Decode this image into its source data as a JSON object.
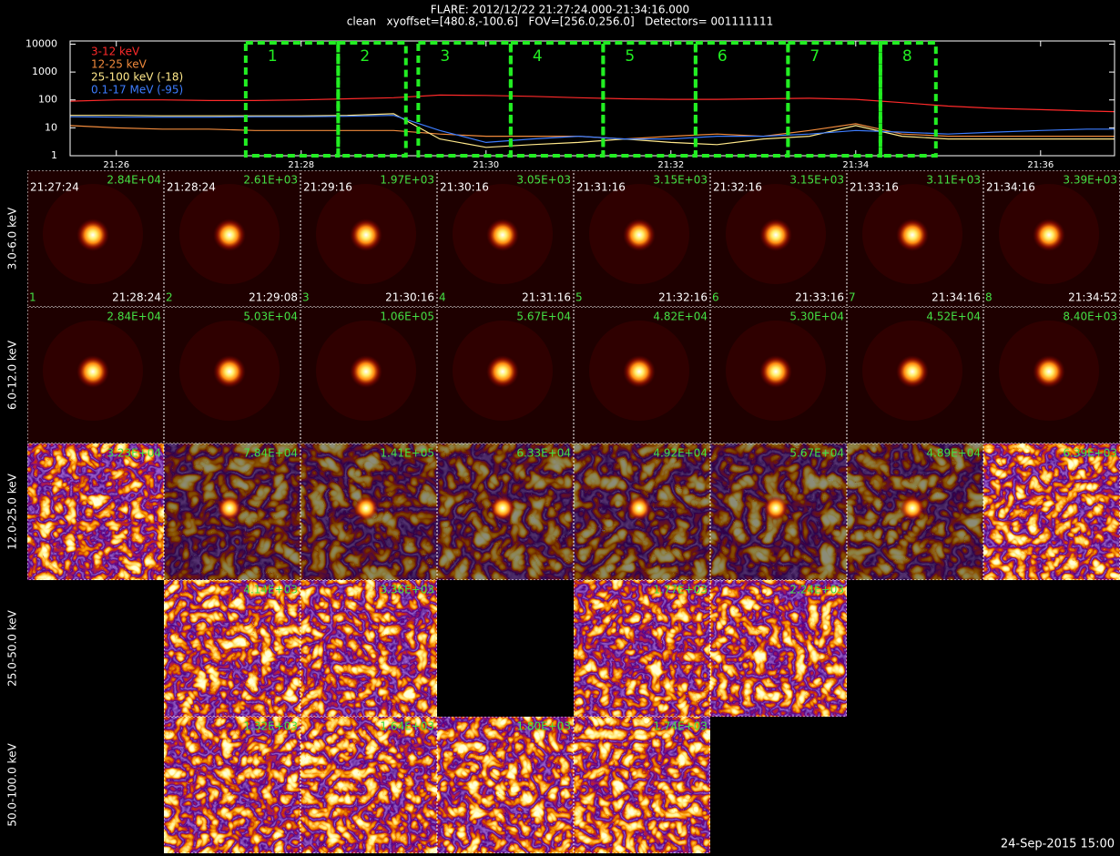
{
  "header": {
    "title": "FLARE: 2012/12/22 21:27:24.000-21:34:16.000",
    "subtitle": "clean   xyoffset=[480.8,-100.6]   FOV=[256.0,256.0]   Detectors= 001111111"
  },
  "chart_data": {
    "type": "line",
    "x": [
      25.5,
      26,
      26.5,
      27,
      27.5,
      28,
      28.5,
      29,
      29.5,
      30,
      30.5,
      31,
      31.5,
      32,
      32.5,
      33,
      33.5,
      34,
      34.5,
      35,
      35.5,
      36,
      36.5,
      36.8
    ],
    "xlim": [
      25.5,
      36.8
    ],
    "xticks": [
      {
        "value": 26,
        "label": "21:26"
      },
      {
        "value": 28,
        "label": "21:28"
      },
      {
        "value": 30,
        "label": "21:30"
      },
      {
        "value": 32,
        "label": "21:32"
      },
      {
        "value": 34,
        "label": "21:34"
      },
      {
        "value": 36,
        "label": "21:36"
      }
    ],
    "ylim": [
      1,
      13000
    ],
    "yticks": [
      1,
      10,
      100,
      1000,
      10000
    ],
    "log_y": true,
    "series": [
      {
        "name": "3-12 keV",
        "color": "#ff2a2a",
        "values": [
          90,
          100,
          100,
          95,
          95,
          100,
          110,
          120,
          150,
          145,
          135,
          120,
          110,
          105,
          105,
          110,
          115,
          105,
          80,
          60,
          50,
          45,
          40,
          38
        ]
      },
      {
        "name": "12-25 keV",
        "color": "#f08a3c",
        "values": [
          12,
          10,
          9,
          9,
          8,
          8,
          8,
          8,
          6,
          5,
          5,
          5,
          4,
          5,
          6,
          5,
          8,
          14,
          6,
          5,
          5,
          5,
          5,
          5
        ]
      },
      {
        "name": "25-100 keV (-18)",
        "color": "#ffe88a",
        "values": [
          28,
          28,
          27,
          27,
          27,
          27,
          28,
          32,
          4,
          2,
          2.5,
          3,
          4,
          3,
          2.5,
          4,
          5,
          12,
          5,
          4,
          4,
          4,
          4,
          4
        ]
      },
      {
        "name": "0.1-17 MeV (-95)",
        "color": "#3d7dff",
        "values": [
          25,
          24,
          24,
          24,
          25,
          25,
          26,
          28,
          8,
          3,
          4,
          5,
          4,
          4,
          5,
          5,
          6,
          8,
          7,
          6,
          7,
          8,
          9,
          9
        ]
      }
    ],
    "intervals": [
      {
        "label": "1",
        "start": 27.4,
        "end": 28.4
      },
      {
        "label": "2",
        "start": 28.4,
        "end": 29.133
      },
      {
        "label": "3",
        "start": 29.267,
        "end": 30.267
      },
      {
        "label": "4",
        "start": 30.267,
        "end": 31.267
      },
      {
        "label": "5",
        "start": 31.267,
        "end": 32.267
      },
      {
        "label": "6",
        "start": 32.267,
        "end": 33.267
      },
      {
        "label": "7",
        "start": 33.267,
        "end": 34.267
      },
      {
        "label": "8",
        "start": 34.267,
        "end": 34.867
      }
    ],
    "interval_color": "#22ee22"
  },
  "image_grid": {
    "rows": [
      {
        "label": "3.0-6.0 keV",
        "panels": [
          {
            "start": "21:27:24",
            "end": "21:28:24",
            "number": "1",
            "max": "2.84E+04"
          },
          {
            "start": "21:28:24",
            "end": "21:29:08",
            "number": "2",
            "max": "2.61E+03"
          },
          {
            "start": "21:29:16",
            "end": "21:30:16",
            "number": "3",
            "max": "1.97E+03"
          },
          {
            "start": "21:30:16",
            "end": "21:31:16",
            "number": "4",
            "max": "3.05E+03"
          },
          {
            "start": "21:31:16",
            "end": "21:32:16",
            "number": "5",
            "max": "3.15E+03"
          },
          {
            "start": "21:32:16",
            "end": "21:33:16",
            "number": "6",
            "max": "3.15E+03"
          },
          {
            "start": "21:33:16",
            "end": "21:34:16",
            "number": "7",
            "max": "3.11E+03"
          },
          {
            "start": "21:34:16",
            "end": "21:34:52",
            "number": "8",
            "max": "3.39E+03"
          }
        ]
      },
      {
        "label": "6.0-12.0 keV",
        "panels": [
          {
            "max": "2.84E+04"
          },
          {
            "max": "5.03E+04"
          },
          {
            "max": "1.06E+05"
          },
          {
            "max": "5.67E+04"
          },
          {
            "max": "4.82E+04"
          },
          {
            "max": "5.30E+04"
          },
          {
            "max": "4.52E+04"
          },
          {
            "max": "8.40E+03"
          }
        ]
      },
      {
        "label": "12.0-25.0 keV",
        "panels": [
          {
            "max": "3.23E+04"
          },
          {
            "max": "7.84E+04"
          },
          {
            "max": "1.41E+05"
          },
          {
            "max": "6.33E+04"
          },
          {
            "max": "4.92E+04"
          },
          {
            "max": "5.67E+04"
          },
          {
            "max": "4.89E+04"
          },
          {
            "max": "6.39E+03"
          }
        ]
      },
      {
        "label": "25.0-50.0 keV",
        "panels": [
          null,
          {
            "max": "4.14E+03"
          },
          {
            "max": "3.36E+03"
          },
          null,
          {
            "max": "1.77E+03"
          },
          {
            "max": "2.24E+03"
          },
          null,
          null
        ]
      },
      {
        "label": "50.0-100.0 keV",
        "panels": [
          null,
          {
            "max": "1.32E+03"
          },
          {
            "max": "1.64E+03"
          },
          {
            "max": "1.80E+03"
          },
          {
            "max": "1.74E+03"
          },
          null,
          null,
          null
        ]
      }
    ]
  },
  "footer": {
    "timestamp": "24-Sep-2015 15:00"
  }
}
